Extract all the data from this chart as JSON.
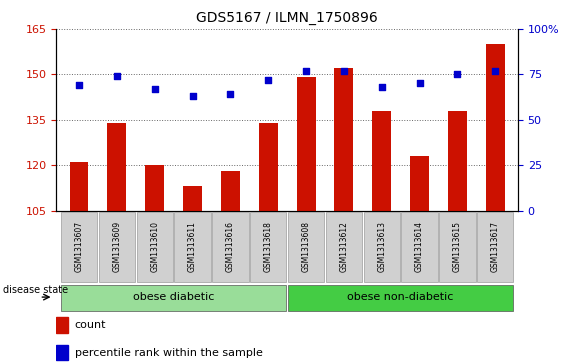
{
  "title": "GDS5167 / ILMN_1750896",
  "samples": [
    "GSM1313607",
    "GSM1313609",
    "GSM1313610",
    "GSM1313611",
    "GSM1313616",
    "GSM1313618",
    "GSM1313608",
    "GSM1313612",
    "GSM1313613",
    "GSM1313614",
    "GSM1313615",
    "GSM1313617"
  ],
  "counts": [
    121,
    134,
    120,
    113,
    118,
    134,
    149,
    152,
    138,
    123,
    138,
    160
  ],
  "percentiles": [
    69,
    74,
    67,
    63,
    64,
    72,
    77,
    77,
    68,
    70,
    75,
    77
  ],
  "ylim_left": [
    105,
    165
  ],
  "ylim_right": [
    0,
    100
  ],
  "yticks_left": [
    105,
    120,
    135,
    150,
    165
  ],
  "yticks_right": [
    0,
    25,
    50,
    75,
    100
  ],
  "bar_color": "#cc1100",
  "dot_color": "#0000cc",
  "group1_label": "obese diabetic",
  "group2_label": "obese non-diabetic",
  "group1_color": "#99dd99",
  "group2_color": "#44cc44",
  "disease_state_label": "disease state",
  "legend_count": "count",
  "legend_percentile": "percentile rank within the sample",
  "bar_width": 0.5,
  "tick_label_area_color": "#d0d0d0",
  "grid_color": "#000000",
  "grid_linestyle": ":"
}
